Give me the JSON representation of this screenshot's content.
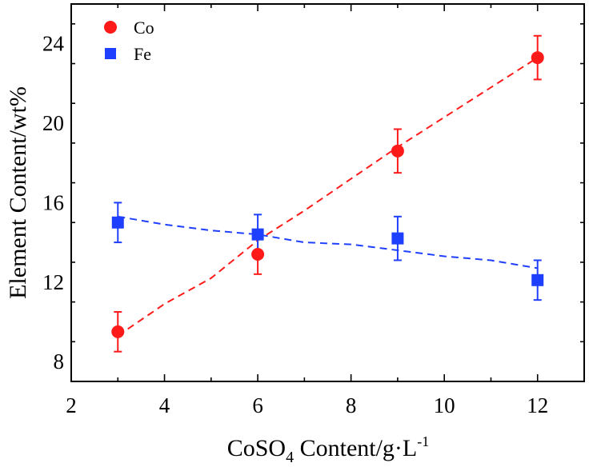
{
  "chart_data": {
    "type": "scatter",
    "xlabel_main": "CoSO",
    "xlabel_sub": "4",
    "xlabel_rest": " Content/g·L",
    "xlabel_sup": "-1",
    "ylabel": "Element Content/wt%",
    "xlim": [
      2,
      13
    ],
    "ylim": [
      7,
      26
    ],
    "x_ticks": [
      2,
      4,
      6,
      8,
      10,
      12
    ],
    "y_ticks": [
      8,
      12,
      16,
      20,
      24
    ],
    "legend_position": "top-left",
    "series": [
      {
        "name": "Co",
        "marker": "circle",
        "color": "#ff1a1a",
        "x": [
          3,
          6,
          9,
          12
        ],
        "y": [
          9.5,
          13.4,
          18.6,
          23.3
        ],
        "err": [
          1.0,
          1.0,
          1.1,
          1.1
        ],
        "trend": [
          [
            3.0,
            9.3
          ],
          [
            4.0,
            10.9
          ],
          [
            5.0,
            12.2
          ],
          [
            6.0,
            14.1
          ],
          [
            7.0,
            15.6
          ],
          [
            8.0,
            17.2
          ],
          [
            9.0,
            18.8
          ],
          [
            10.0,
            20.3
          ],
          [
            11.0,
            21.8
          ],
          [
            12.0,
            23.3
          ]
        ]
      },
      {
        "name": "Fe",
        "marker": "square",
        "color": "#1f3fff",
        "x": [
          3,
          6,
          9,
          12
        ],
        "y": [
          15.0,
          14.4,
          14.2,
          12.1
        ],
        "err": [
          1.0,
          1.0,
          1.1,
          1.0
        ],
        "trend": [
          [
            3.0,
            15.3
          ],
          [
            4.0,
            14.9
          ],
          [
            5.0,
            14.6
          ],
          [
            6.0,
            14.4
          ],
          [
            7.0,
            14.0
          ],
          [
            8.0,
            13.9
          ],
          [
            9.0,
            13.6
          ],
          [
            10.0,
            13.3
          ],
          [
            11.0,
            13.1
          ],
          [
            12.0,
            12.7
          ]
        ]
      }
    ]
  }
}
